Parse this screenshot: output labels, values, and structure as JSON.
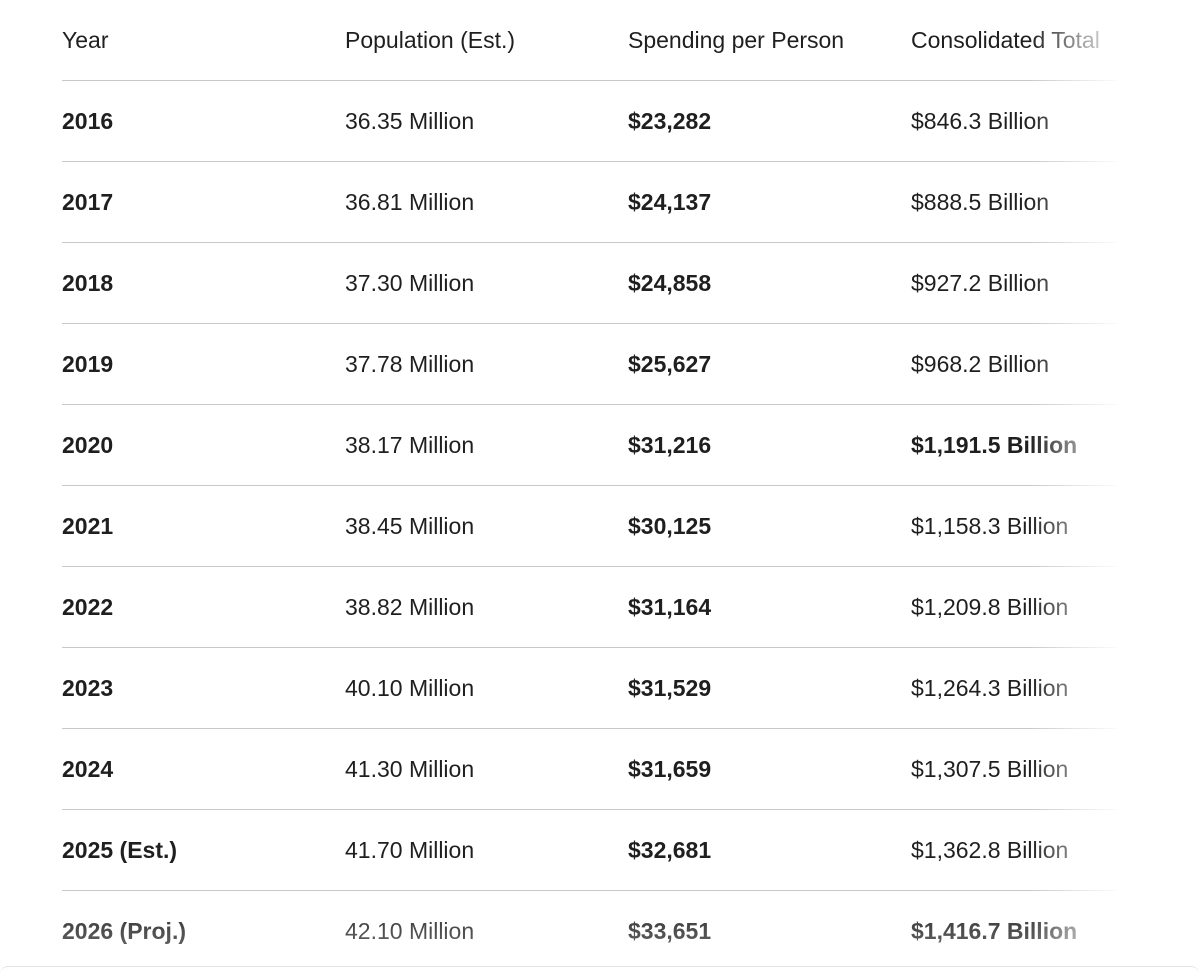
{
  "table": {
    "headers": [
      "Year",
      "Population (Est.)",
      "Spending per Person",
      "Consolidated Total"
    ],
    "rows": [
      {
        "year": "2016",
        "population": "36.35 Million",
        "spending": "$23,282",
        "total": "$846.3 Billion",
        "total_bold": false
      },
      {
        "year": "2017",
        "population": "36.81 Million",
        "spending": "$24,137",
        "total": "$888.5 Billion",
        "total_bold": false
      },
      {
        "year": "2018",
        "population": "37.30 Million",
        "spending": "$24,858",
        "total": "$927.2 Billion",
        "total_bold": false
      },
      {
        "year": "2019",
        "population": "37.78 Million",
        "spending": "$25,627",
        "total": "$968.2 Billion",
        "total_bold": false
      },
      {
        "year": "2020",
        "population": "38.17 Million",
        "spending": "$31,216",
        "total": "$1,191.5 Billion",
        "total_bold": true
      },
      {
        "year": "2021",
        "population": "38.45 Million",
        "spending": "$30,125",
        "total": "$1,158.3 Billion",
        "total_bold": false
      },
      {
        "year": "2022",
        "population": "38.82 Million",
        "spending": "$31,164",
        "total": "$1,209.8 Billion",
        "total_bold": false
      },
      {
        "year": "2023",
        "population": "40.10 Million",
        "spending": "$31,529",
        "total": "$1,264.3 Billion",
        "total_bold": false
      },
      {
        "year": "2024",
        "population": "41.30 Million",
        "spending": "$31,659",
        "total": "$1,307.5 Billion",
        "total_bold": false
      },
      {
        "year": "2025 (Est.)",
        "population": "41.70 Million",
        "spending": "$32,681",
        "total": "$1,362.8 Billion",
        "total_bold": false
      },
      {
        "year": "2026 (Proj.)",
        "population": "42.10 Million",
        "spending": "$33,651",
        "total": "$1,416.7 Billion",
        "total_bold": true
      }
    ]
  }
}
